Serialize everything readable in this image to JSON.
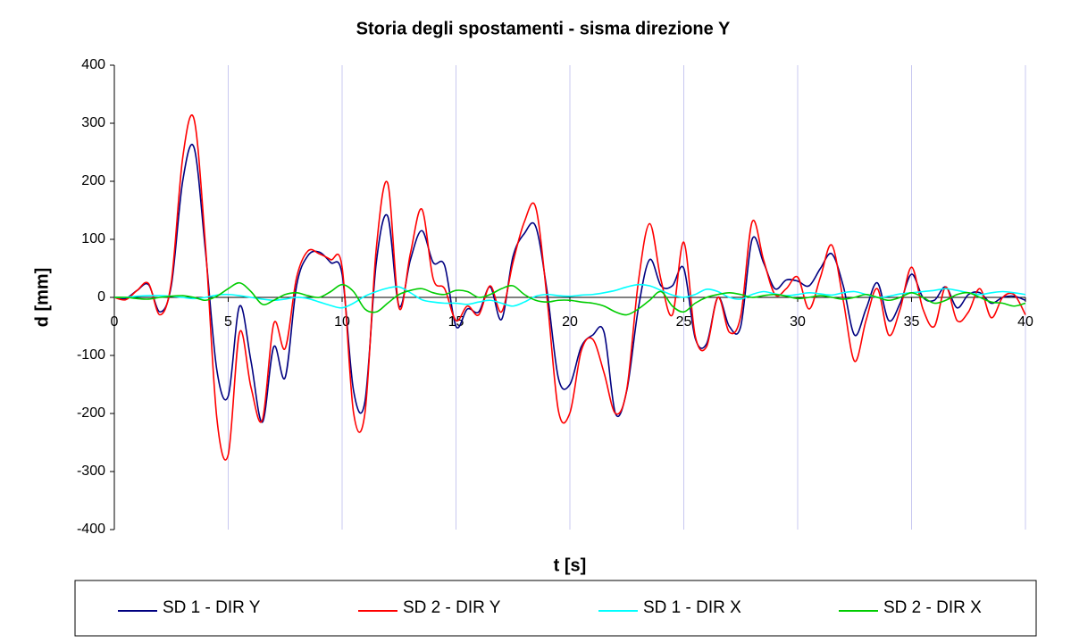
{
  "chart_data": {
    "type": "line",
    "title": "Storia degli spostamenti - sisma direzione Y",
    "xlabel": "t [s]",
    "ylabel": "d [mm]",
    "xlim": [
      0,
      40
    ],
    "xticks": [
      0,
      5,
      10,
      15,
      20,
      25,
      30,
      35,
      40
    ],
    "ylim": [
      -400,
      400
    ],
    "yticks": [
      -400,
      -300,
      -200,
      -100,
      0,
      100,
      200,
      300,
      400
    ],
    "grid": true,
    "legend": "bottom",
    "x": [
      0,
      0.5,
      1,
      1.5,
      2,
      2.5,
      3,
      3.5,
      4,
      4.5,
      5,
      5.5,
      6,
      6.5,
      7,
      7.5,
      8,
      8.5,
      9,
      9.5,
      10,
      10.5,
      11,
      11.5,
      12,
      12.5,
      13,
      13.5,
      14,
      14.5,
      15,
      15.5,
      16,
      16.5,
      17,
      17.5,
      18,
      18.5,
      19,
      19.5,
      20,
      20.5,
      21,
      21.5,
      22,
      22.5,
      23,
      23.5,
      24,
      24.5,
      25,
      25.5,
      26,
      26.5,
      27,
      27.5,
      28,
      28.5,
      29,
      29.5,
      30,
      30.5,
      31,
      31.5,
      32,
      32.5,
      33,
      33.5,
      34,
      34.5,
      35,
      35.5,
      36,
      36.5,
      37,
      37.5,
      38,
      38.5,
      39,
      39.5,
      40
    ],
    "series": [
      {
        "name": "SD 1 - DIR Y",
        "color": "#000080",
        "values": [
          0,
          -2,
          12,
          22,
          -25,
          20,
          200,
          258,
          80,
          -125,
          -170,
          -15,
          -110,
          -215,
          -85,
          -138,
          20,
          72,
          78,
          60,
          40,
          -160,
          -180,
          60,
          140,
          -15,
          65,
          115,
          60,
          55,
          -50,
          -20,
          -25,
          18,
          -38,
          70,
          110,
          122,
          10,
          -140,
          -150,
          -85,
          -65,
          -60,
          -200,
          -160,
          -20,
          65,
          20,
          20,
          50,
          -70,
          -80,
          0,
          -50,
          -50,
          100,
          60,
          15,
          30,
          28,
          20,
          50,
          75,
          20,
          -65,
          -20,
          25,
          -40,
          -10,
          40,
          0,
          -5,
          18,
          -18,
          5,
          8,
          -10,
          0,
          2,
          -5
        ]
      },
      {
        "name": "SD 2 - DIR Y",
        "color": "#ff0000",
        "values": [
          0,
          -4,
          12,
          24,
          -30,
          26,
          240,
          307,
          90,
          -208,
          -271,
          -60,
          -155,
          -211,
          -45,
          -88,
          34,
          80,
          75,
          65,
          52,
          -198,
          -200,
          84,
          197,
          -18,
          76,
          152,
          32,
          15,
          -40,
          -15,
          -30,
          20,
          -25,
          60,
          130,
          155,
          -3,
          -196,
          -199,
          -92,
          -72,
          -130,
          -200,
          -158,
          25,
          127,
          30,
          -30,
          95,
          -66,
          -85,
          0,
          -60,
          -32,
          130,
          65,
          5,
          15,
          35,
          -20,
          35,
          90,
          -5,
          -110,
          -40,
          15,
          -65,
          -20,
          52,
          -20,
          -50,
          18,
          -40,
          -25,
          15,
          -35,
          0,
          5,
          -30
        ]
      },
      {
        "name": "SD 1 - DIR X",
        "color": "#00ffff",
        "values": [
          0,
          0,
          2,
          3,
          3,
          2,
          0,
          -2,
          0,
          4,
          5,
          3,
          0,
          -3,
          -5,
          -3,
          0,
          -2,
          -8,
          -14,
          -18,
          -10,
          2,
          10,
          16,
          18,
          8,
          -4,
          -8,
          -10,
          -10,
          -12,
          -8,
          -5,
          -10,
          -15,
          -8,
          2,
          5,
          3,
          2,
          4,
          5,
          8,
          12,
          18,
          22,
          20,
          12,
          4,
          0,
          5,
          14,
          10,
          0,
          -3,
          5,
          10,
          6,
          3,
          5,
          8,
          6,
          4,
          8,
          10,
          5,
          0,
          2,
          6,
          8,
          10,
          12,
          15,
          12,
          8,
          5,
          8,
          10,
          8,
          5
        ]
      },
      {
        "name": "SD 2 - DIR X",
        "color": "#00cc00",
        "values": [
          0,
          0,
          -2,
          -3,
          0,
          2,
          3,
          0,
          -5,
          2,
          15,
          25,
          10,
          -12,
          -5,
          5,
          8,
          3,
          0,
          10,
          22,
          10,
          -20,
          -25,
          -10,
          5,
          12,
          15,
          8,
          5,
          12,
          10,
          0,
          5,
          15,
          20,
          5,
          -5,
          -8,
          -5,
          -5,
          -8,
          -10,
          -15,
          -25,
          -30,
          -20,
          -5,
          10,
          -15,
          -25,
          -10,
          0,
          5,
          8,
          5,
          0,
          3,
          5,
          2,
          -2,
          0,
          3,
          0,
          -3,
          0,
          5,
          0,
          -5,
          0,
          8,
          0,
          -10,
          -5,
          5,
          8,
          0,
          -8,
          -10,
          -15,
          -10
        ]
      }
    ]
  }
}
